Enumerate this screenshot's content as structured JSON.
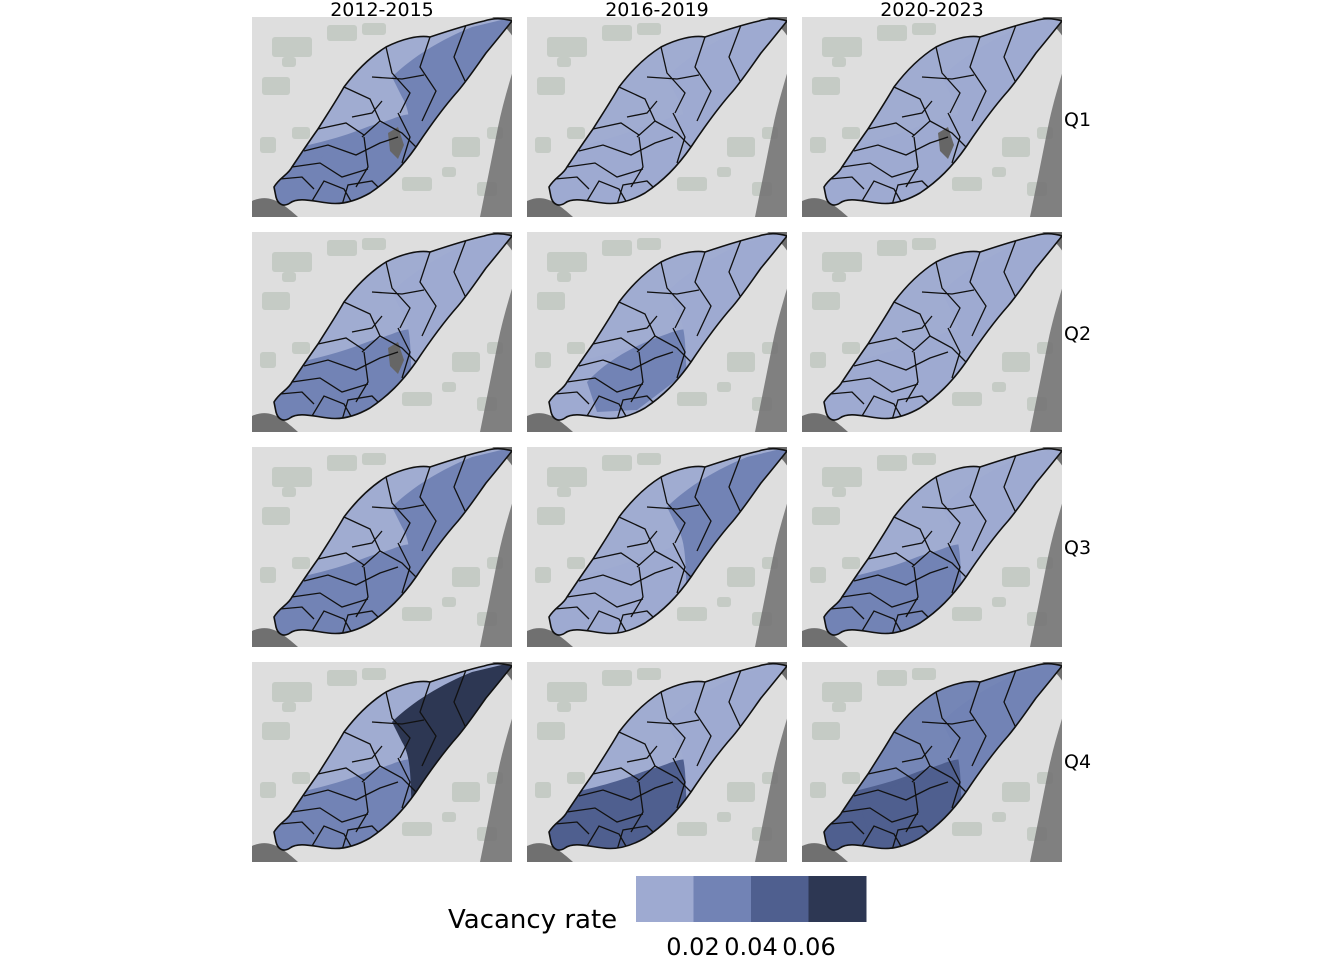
{
  "columns": [
    "2012-2015",
    "2016-2019",
    "2020-2023"
  ],
  "rows": [
    "Q1",
    "Q2",
    "Q3",
    "Q4"
  ],
  "legend": {
    "title": "Vacancy rate",
    "labels": [
      "0.02",
      "0.04",
      "0.06"
    ],
    "colors": [
      "#9eaad1",
      "#7283b5",
      "#4f5f8f",
      "#2d3753"
    ]
  },
  "colors": {
    "na": "#666666",
    "basemap": "#dedede",
    "water": "#707070",
    "park": "#c5cbc5"
  },
  "panels": [
    [
      {
        "base": 0,
        "south": 1,
        "center": 1,
        "ne": 1,
        "na": true
      },
      {
        "base": 0,
        "south": 0,
        "center": 0,
        "ne": 0,
        "na": false
      },
      {
        "base": 0,
        "south": 0,
        "center": 0,
        "ne": 0,
        "na": true
      }
    ],
    [
      {
        "base": 0,
        "south": 1,
        "center": 1,
        "ne": 0,
        "na": true
      },
      {
        "base": 0,
        "south": 0,
        "center": 1,
        "ne": 0,
        "na": false
      },
      {
        "base": 0,
        "south": 0,
        "center": 0,
        "ne": 0,
        "na": false
      }
    ],
    [
      {
        "base": 0,
        "south": 1,
        "center": 1,
        "ne": 1,
        "na": false
      },
      {
        "base": 0,
        "south": 0,
        "center": 0,
        "ne": 1,
        "na": false
      },
      {
        "base": 0,
        "south": 1,
        "center": 1,
        "ne": 0,
        "na": false
      }
    ],
    [
      {
        "base": 0,
        "south": 1,
        "center": 1,
        "ne": 3,
        "na": false
      },
      {
        "base": 0,
        "south": 2,
        "center": 2,
        "ne": 0,
        "na": false
      },
      {
        "base": 1,
        "south": 2,
        "center": 2,
        "ne": 1,
        "na": false
      }
    ]
  ]
}
